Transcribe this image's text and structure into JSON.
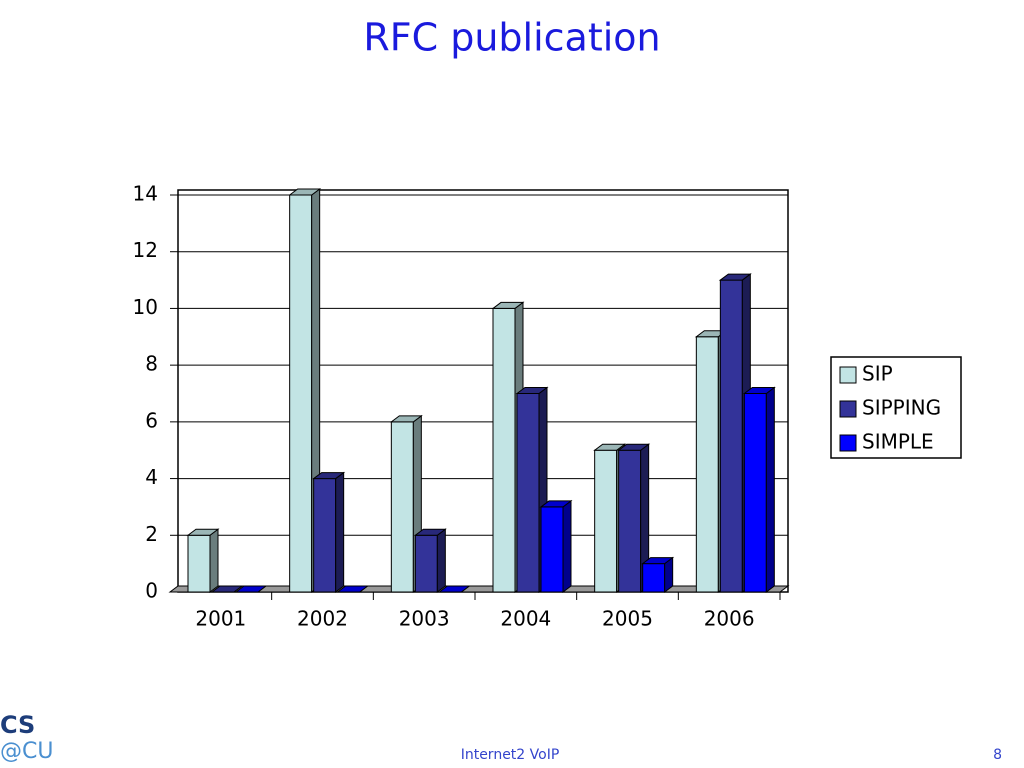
{
  "chart_data": {
    "type": "bar",
    "title": "RFC publication",
    "categories": [
      "2001",
      "2002",
      "2003",
      "2004",
      "2005",
      "2006"
    ],
    "series": [
      {
        "name": "SIP",
        "color": "#c2e4e4",
        "values": [
          2,
          14,
          6,
          10,
          5,
          9
        ]
      },
      {
        "name": "SIPPING",
        "color": "#333399",
        "values": [
          0,
          4,
          2,
          7,
          5,
          11
        ]
      },
      {
        "name": "SIMPLE",
        "color": "#0000ff",
        "values": [
          0,
          0,
          0,
          3,
          1,
          7
        ]
      }
    ],
    "ylim": [
      0,
      14
    ],
    "yticks": [
      0,
      2,
      4,
      6,
      8,
      10,
      12,
      14
    ],
    "grid": true,
    "legend": "right"
  },
  "footer": {
    "text": "Internet2 VoIP",
    "page": "8"
  },
  "logo": {
    "top": "CS",
    "bottom": "@CU"
  }
}
